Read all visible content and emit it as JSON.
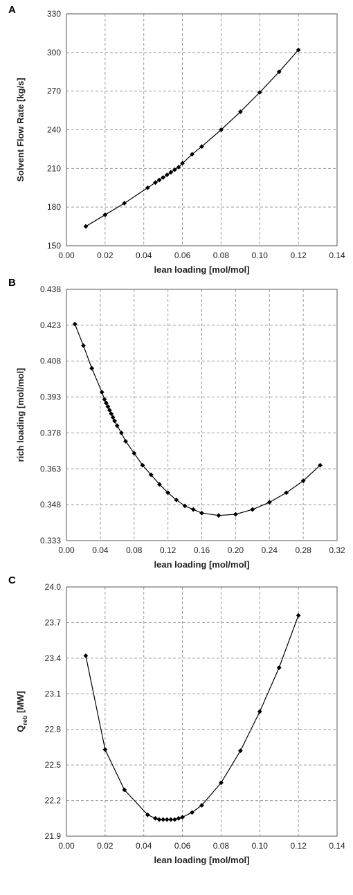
{
  "chart_data": [
    {
      "panel": "A",
      "type": "line",
      "xlabel": "lean loading [mol/mol]",
      "ylabel": "Solvent Flow Rate [kg/s]",
      "xlim": [
        0.0,
        0.14
      ],
      "ylim": [
        150,
        330
      ],
      "xticks": [
        "0.00",
        "0.02",
        "0.04",
        "0.06",
        "0.08",
        "0.10",
        "0.12",
        "0.14"
      ],
      "yticks": [
        "150",
        "180",
        "210",
        "240",
        "270",
        "300",
        "330"
      ],
      "grid": true,
      "marker": "diamond",
      "x": [
        0.01,
        0.02,
        0.03,
        0.042,
        0.046,
        0.048,
        0.05,
        0.052,
        0.054,
        0.056,
        0.058,
        0.06,
        0.065,
        0.07,
        0.08,
        0.09,
        0.1,
        0.11,
        0.12
      ],
      "y": [
        165,
        174,
        183,
        195,
        199,
        201,
        203,
        205,
        207,
        209,
        211,
        214,
        221,
        227,
        240,
        254,
        269,
        285,
        302
      ]
    },
    {
      "panel": "B",
      "type": "line",
      "xlabel": "lean loading [mol/mol]",
      "ylabel": "rich loading [mol/mol]",
      "xlim": [
        0.0,
        0.32
      ],
      "ylim": [
        0.333,
        0.438
      ],
      "xticks": [
        "0.00",
        "0.04",
        "0.08",
        "0.12",
        "0.16",
        "0.20",
        "0.24",
        "0.28",
        "0.32"
      ],
      "yticks": [
        "0.333",
        "0.348",
        "0.363",
        "0.378",
        "0.393",
        "0.408",
        "0.423",
        "0.438"
      ],
      "grid": true,
      "marker": "diamond",
      "x": [
        0.01,
        0.02,
        0.03,
        0.042,
        0.045,
        0.047,
        0.049,
        0.051,
        0.053,
        0.055,
        0.057,
        0.06,
        0.065,
        0.07,
        0.08,
        0.09,
        0.1,
        0.11,
        0.12,
        0.13,
        0.14,
        0.15,
        0.16,
        0.18,
        0.2,
        0.22,
        0.24,
        0.26,
        0.28,
        0.3
      ],
      "y": [
        0.4235,
        0.4145,
        0.405,
        0.395,
        0.392,
        0.3905,
        0.389,
        0.3875,
        0.386,
        0.3845,
        0.383,
        0.381,
        0.378,
        0.3745,
        0.3695,
        0.3645,
        0.3605,
        0.3565,
        0.353,
        0.35,
        0.3475,
        0.346,
        0.3445,
        0.3435,
        0.344,
        0.346,
        0.349,
        0.353,
        0.358,
        0.3645
      ]
    },
    {
      "panel": "C",
      "type": "line",
      "xlabel": "lean loading [mol/mol]",
      "ylabel": "Q_reb [MW]",
      "ylabel_main": "Q",
      "ylabel_sub": "reb",
      "ylabel_unit": " [MW]",
      "xlim": [
        0.0,
        0.14
      ],
      "ylim": [
        21.9,
        24.0
      ],
      "xticks": [
        "0.00",
        "0.02",
        "0.04",
        "0.06",
        "0.08",
        "0.10",
        "0.12",
        "0.14"
      ],
      "yticks": [
        "21.9",
        "22.2",
        "22.5",
        "22.8",
        "23.1",
        "23.4",
        "23.7",
        "24.0"
      ],
      "grid": true,
      "marker": "diamond",
      "x": [
        0.01,
        0.02,
        0.03,
        0.042,
        0.046,
        0.048,
        0.05,
        0.052,
        0.054,
        0.056,
        0.058,
        0.06,
        0.065,
        0.07,
        0.08,
        0.09,
        0.1,
        0.11,
        0.12
      ],
      "y": [
        23.42,
        22.63,
        22.29,
        22.08,
        22.05,
        22.04,
        22.04,
        22.04,
        22.04,
        22.04,
        22.05,
        22.06,
        22.1,
        22.16,
        22.35,
        22.62,
        22.95,
        23.32,
        23.76
      ]
    }
  ]
}
